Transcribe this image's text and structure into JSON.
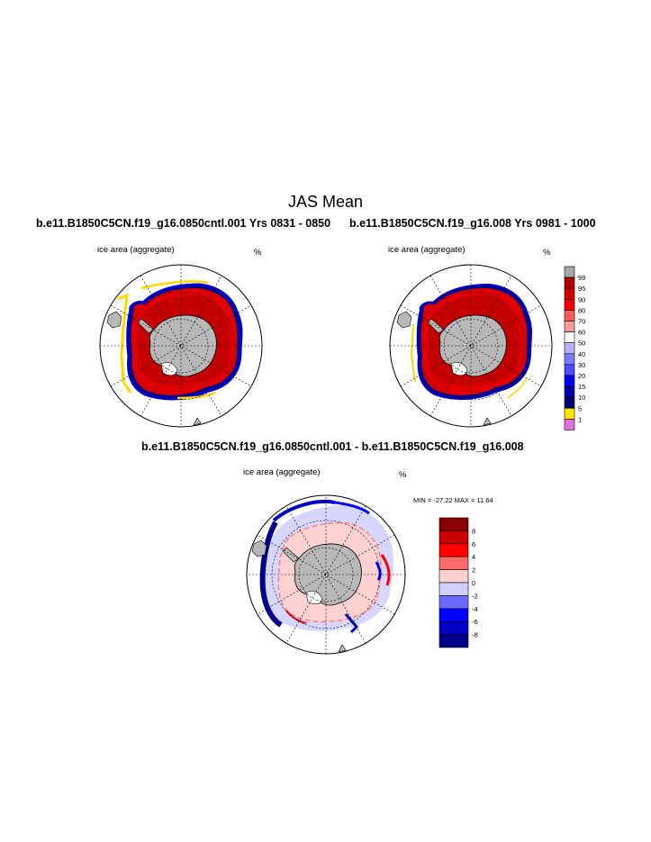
{
  "main_title": "JAS Mean",
  "panels": [
    {
      "title": "b.e11.B1850C5CN.f19_g16.0850cntl.001  Yrs 0831 - 0850",
      "variable": "ice area  (aggregate)",
      "units": "%"
    },
    {
      "title": "b.e11.B1850C5CN.f19_g16.008  Yrs 0981 - 1000",
      "variable": "ice area  (aggregate)",
      "units": "%"
    },
    {
      "title": "b.e11.B1850C5CN.f19_g16.0850cntl.001 - b.e11.B1850C5CN.f19_g16.008",
      "variable": "ice area  (aggregate)",
      "units": "%",
      "stats": "MIN = -27.22 MAX =  11.64"
    }
  ],
  "colorbar_concentration": {
    "labels": [
      "99",
      "95",
      "90",
      "80",
      "70",
      "60",
      "50",
      "40",
      "30",
      "20",
      "15",
      "10",
      "5",
      "1"
    ],
    "colors": [
      "#a6a6a6",
      "#b30000",
      "#d40000",
      "#f00000",
      "#ff5a5a",
      "#ff9a9a",
      "#ffffff",
      "#b3b3ff",
      "#7a7aff",
      "#4d4dff",
      "#0000f0",
      "#0000b0",
      "#000070",
      "#ffe600",
      "#e070e0"
    ]
  },
  "colorbar_difference": {
    "labels": [
      "8",
      "6",
      "4",
      "2",
      "0",
      "-2",
      "-4",
      "-6",
      "-8"
    ],
    "colors": [
      "#8b0000",
      "#c80000",
      "#ff0000",
      "#ff6b6b",
      "#ffd0d0",
      "#d0d0ff",
      "#6b6bff",
      "#0000ff",
      "#0000c8",
      "#00008b"
    ]
  }
}
